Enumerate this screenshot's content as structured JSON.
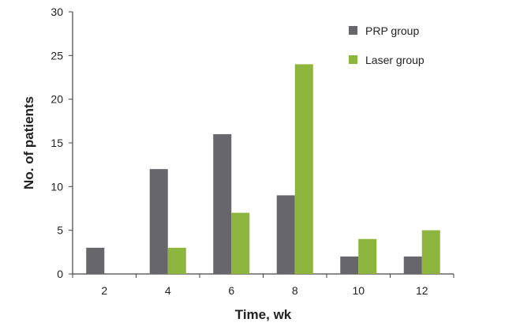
{
  "chart_data": {
    "type": "bar",
    "title": "",
    "xlabel": "Time, wk",
    "ylabel": "No. of patients",
    "categories": [
      "2",
      "4",
      "6",
      "8",
      "10",
      "12"
    ],
    "series": [
      {
        "name": "PRP group",
        "values": [
          3,
          12,
          16,
          9,
          2,
          2
        ],
        "color": "#67666b"
      },
      {
        "name": "Laser group",
        "values": [
          0,
          3,
          7,
          24,
          4,
          5
        ],
        "color": "#8db43c"
      }
    ],
    "ylim": [
      0,
      30
    ],
    "yticks": [
      0,
      5,
      10,
      15,
      20,
      25,
      30
    ],
    "grid": false,
    "legend": "top-right"
  }
}
